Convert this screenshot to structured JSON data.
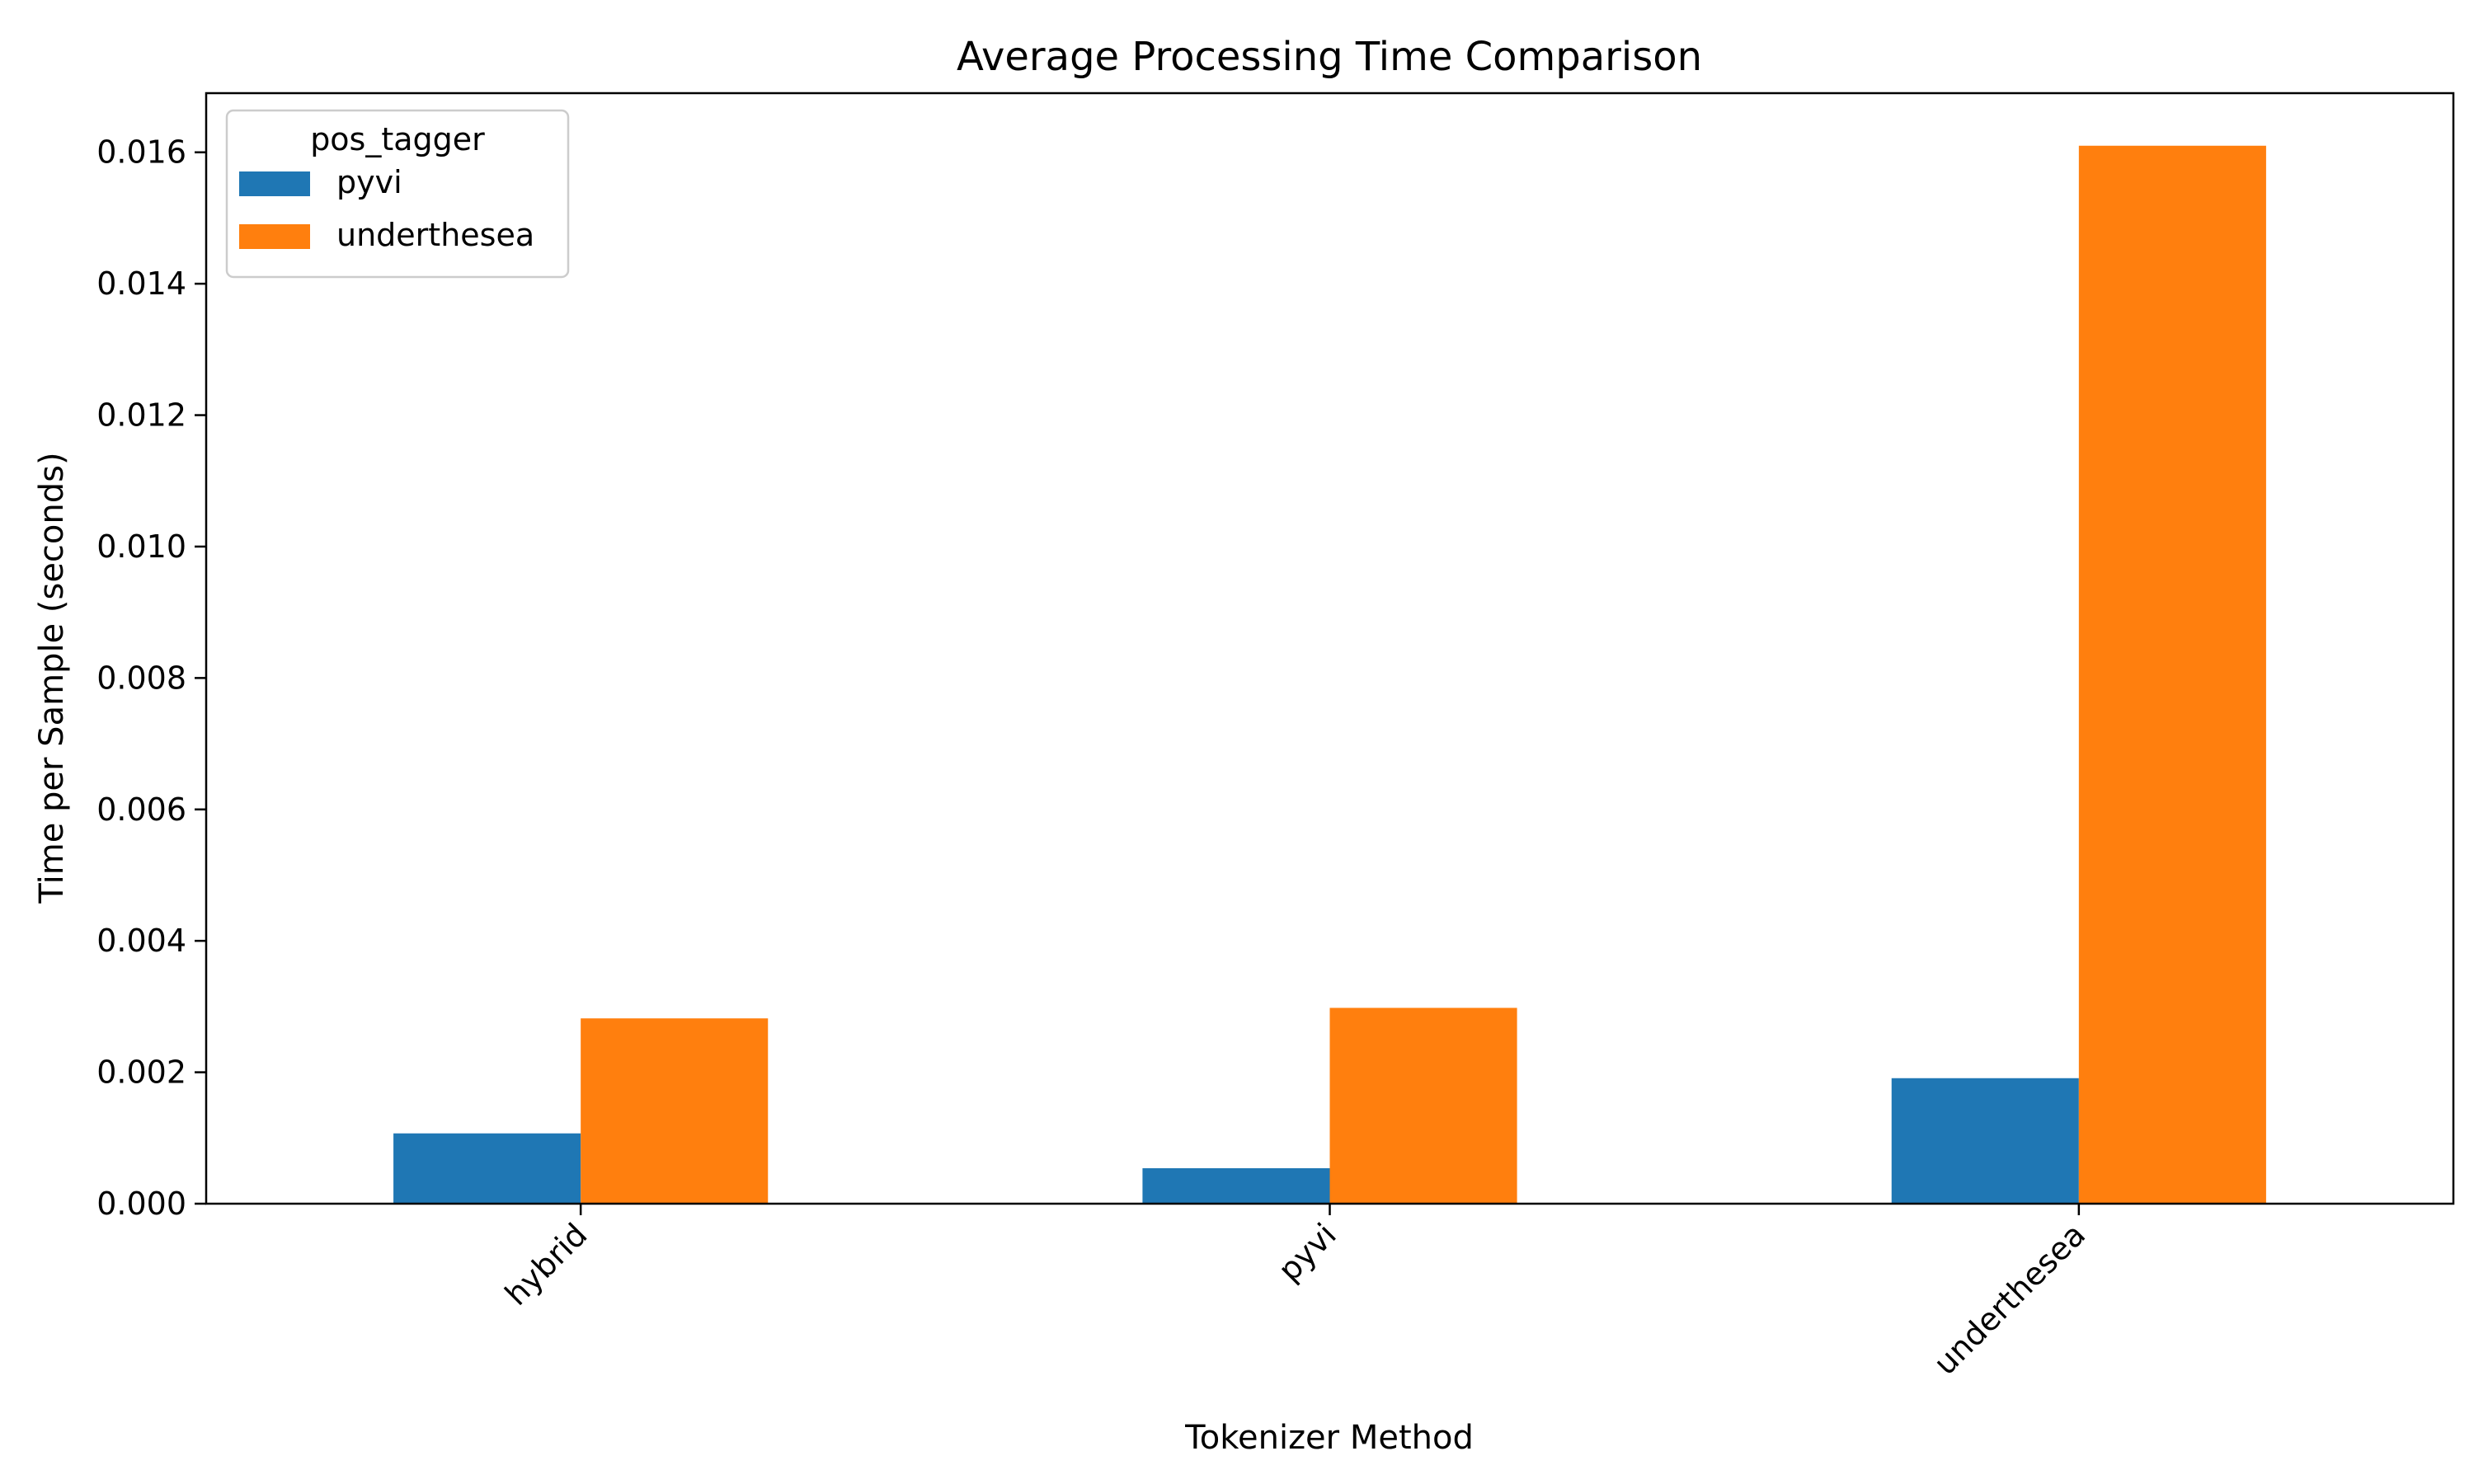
{
  "chart_data": {
    "type": "bar",
    "title": "Average Processing Time Comparison",
    "xlabel": "Tokenizer Method",
    "ylabel": "Time per Sample (seconds)",
    "categories": [
      "hybrid",
      "pyvi",
      "underthesea"
    ],
    "series": [
      {
        "name": "pyvi",
        "values": [
          0.00107,
          0.00054,
          0.00191
        ],
        "color": "#1f77b4"
      },
      {
        "name": "underthesea",
        "values": [
          0.00282,
          0.00298,
          0.0161
        ],
        "color": "#ff7f0e"
      }
    ],
    "ylim": [
      0,
      0.0169
    ],
    "yticks": [
      0.0,
      0.002,
      0.004,
      0.006,
      0.008,
      0.01,
      0.012,
      0.014,
      0.016
    ],
    "ytick_labels": [
      "0.000",
      "0.002",
      "0.004",
      "0.006",
      "0.008",
      "0.010",
      "0.012",
      "0.014",
      "0.016"
    ],
    "grid": false,
    "legend": {
      "title": "pos_tagger",
      "placement": "top-left"
    },
    "xtick_rotation": 45
  }
}
